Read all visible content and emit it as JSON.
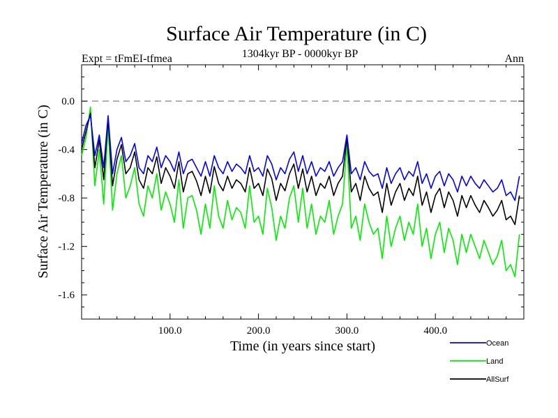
{
  "chart_data": {
    "type": "line",
    "title": "Surface Air Temperature (in C)",
    "subtitle_left": "Expt = tFmEI-tfmea",
    "subtitle_center": "1304kyr BP - 0000kyr BP",
    "subtitle_right": "Ann",
    "xlabel": "Time (in years since start)",
    "ylabel": "Surface Air Temperature (in C)",
    "xlim": [
      0,
      500
    ],
    "ylim": [
      -1.8,
      0.3
    ],
    "x_ticks": [
      100,
      200,
      300,
      400
    ],
    "x_tick_labels": [
      "100.0",
      "200.0",
      "300.0",
      "400.0"
    ],
    "y_ticks": [
      0.0,
      -0.4,
      -0.8,
      -1.2,
      -1.6
    ],
    "y_tick_labels": [
      "0.0",
      "-0.4",
      "-0.8",
      "-1.2",
      "-1.6"
    ],
    "reference_line": {
      "y": 0.0,
      "style": "dashed",
      "color": "#808080"
    },
    "x_step": 5,
    "x_start": 0,
    "series": [
      {
        "name": "Ocean",
        "color": "#0000ff",
        "values": [
          -0.35,
          -0.2,
          -0.12,
          -0.45,
          -0.28,
          -0.55,
          -0.12,
          -0.6,
          -0.4,
          -0.3,
          -0.5,
          -0.45,
          -0.35,
          -0.55,
          -0.6,
          -0.45,
          -0.5,
          -0.38,
          -0.55,
          -0.45,
          -0.5,
          -0.58,
          -0.42,
          -0.6,
          -0.5,
          -0.48,
          -0.55,
          -0.62,
          -0.5,
          -0.62,
          -0.45,
          -0.55,
          -0.6,
          -0.5,
          -0.58,
          -0.52,
          -0.55,
          -0.6,
          -0.45,
          -0.58,
          -0.55,
          -0.62,
          -0.45,
          -0.52,
          -0.65,
          -0.55,
          -0.6,
          -0.48,
          -0.42,
          -0.58,
          -0.45,
          -0.6,
          -0.5,
          -0.62,
          -0.55,
          -0.58,
          -0.5,
          -0.62,
          -0.55,
          -0.5,
          -0.28,
          -0.6,
          -0.55,
          -0.65,
          -0.5,
          -0.58,
          -0.62,
          -0.6,
          -0.72,
          -0.55,
          -0.68,
          -0.6,
          -0.55,
          -0.65,
          -0.58,
          -0.62,
          -0.5,
          -0.68,
          -0.6,
          -0.72,
          -0.62,
          -0.58,
          -0.7,
          -0.6,
          -0.65,
          -0.75,
          -0.62,
          -0.7,
          -0.62,
          -0.68,
          -0.72,
          -0.65,
          -0.7,
          -0.75,
          -0.72,
          -0.65,
          -0.78,
          -0.75,
          -0.82,
          -0.62
        ]
      },
      {
        "name": "Land",
        "color": "#00ee00",
        "values": [
          -0.45,
          -0.3,
          -0.05,
          -0.7,
          -0.4,
          -0.85,
          -0.2,
          -0.9,
          -0.6,
          -0.45,
          -0.8,
          -0.7,
          -0.55,
          -0.85,
          -0.95,
          -0.7,
          -0.8,
          -0.6,
          -0.9,
          -0.75,
          -0.85,
          -1.0,
          -0.65,
          -1.05,
          -0.8,
          -0.78,
          -0.9,
          -1.1,
          -0.85,
          -1.05,
          -0.7,
          -0.95,
          -1.05,
          -0.82,
          -0.98,
          -0.88,
          -0.92,
          -1.05,
          -0.7,
          -1.0,
          -0.95,
          -1.1,
          -0.72,
          -0.88,
          -1.15,
          -0.95,
          -1.05,
          -0.8,
          -0.7,
          -1.0,
          -0.72,
          -1.05,
          -0.85,
          -1.1,
          -0.95,
          -1.0,
          -0.82,
          -1.1,
          -0.95,
          -0.85,
          -0.35,
          -1.05,
          -0.95,
          -1.15,
          -0.85,
          -1.0,
          -1.1,
          -1.05,
          -1.3,
          -0.95,
          -1.2,
          -1.05,
          -0.95,
          -1.15,
          -1.0,
          -1.1,
          -0.85,
          -1.2,
          -1.05,
          -1.3,
          -1.1,
          -1.0,
          -1.25,
          -1.05,
          -1.15,
          -1.35,
          -1.1,
          -1.25,
          -1.1,
          -1.2,
          -1.3,
          -1.15,
          -1.25,
          -1.35,
          -1.28,
          -1.15,
          -1.4,
          -1.35,
          -1.45,
          -1.1
        ]
      },
      {
        "name": "AllSurf",
        "color": "#000000",
        "values": [
          -0.4,
          -0.25,
          -0.1,
          -0.55,
          -0.32,
          -0.65,
          -0.15,
          -0.7,
          -0.48,
          -0.36,
          -0.6,
          -0.55,
          -0.42,
          -0.65,
          -0.72,
          -0.55,
          -0.6,
          -0.46,
          -0.68,
          -0.55,
          -0.62,
          -0.72,
          -0.5,
          -0.75,
          -0.6,
          -0.58,
          -0.66,
          -0.78,
          -0.62,
          -0.76,
          -0.54,
          -0.68,
          -0.74,
          -0.62,
          -0.72,
          -0.65,
          -0.68,
          -0.75,
          -0.55,
          -0.72,
          -0.68,
          -0.78,
          -0.56,
          -0.64,
          -0.82,
          -0.68,
          -0.74,
          -0.6,
          -0.52,
          -0.72,
          -0.56,
          -0.75,
          -0.62,
          -0.78,
          -0.68,
          -0.72,
          -0.62,
          -0.78,
          -0.68,
          -0.62,
          -0.3,
          -0.75,
          -0.68,
          -0.82,
          -0.62,
          -0.72,
          -0.78,
          -0.75,
          -0.92,
          -0.68,
          -0.86,
          -0.75,
          -0.68,
          -0.82,
          -0.72,
          -0.78,
          -0.62,
          -0.86,
          -0.75,
          -0.92,
          -0.78,
          -0.72,
          -0.88,
          -0.75,
          -0.82,
          -0.95,
          -0.78,
          -0.88,
          -0.78,
          -0.86,
          -0.92,
          -0.82,
          -0.88,
          -0.95,
          -0.9,
          -0.82,
          -0.98,
          -0.95,
          -1.02,
          -0.78
        ]
      }
    ],
    "legend": [
      {
        "name": "Ocean",
        "color": "#0000ff"
      },
      {
        "name": "Land",
        "color": "#00ee00"
      },
      {
        "name": "AllSurf",
        "color": "#000000"
      }
    ],
    "legend_placement": "bottom-right"
  }
}
